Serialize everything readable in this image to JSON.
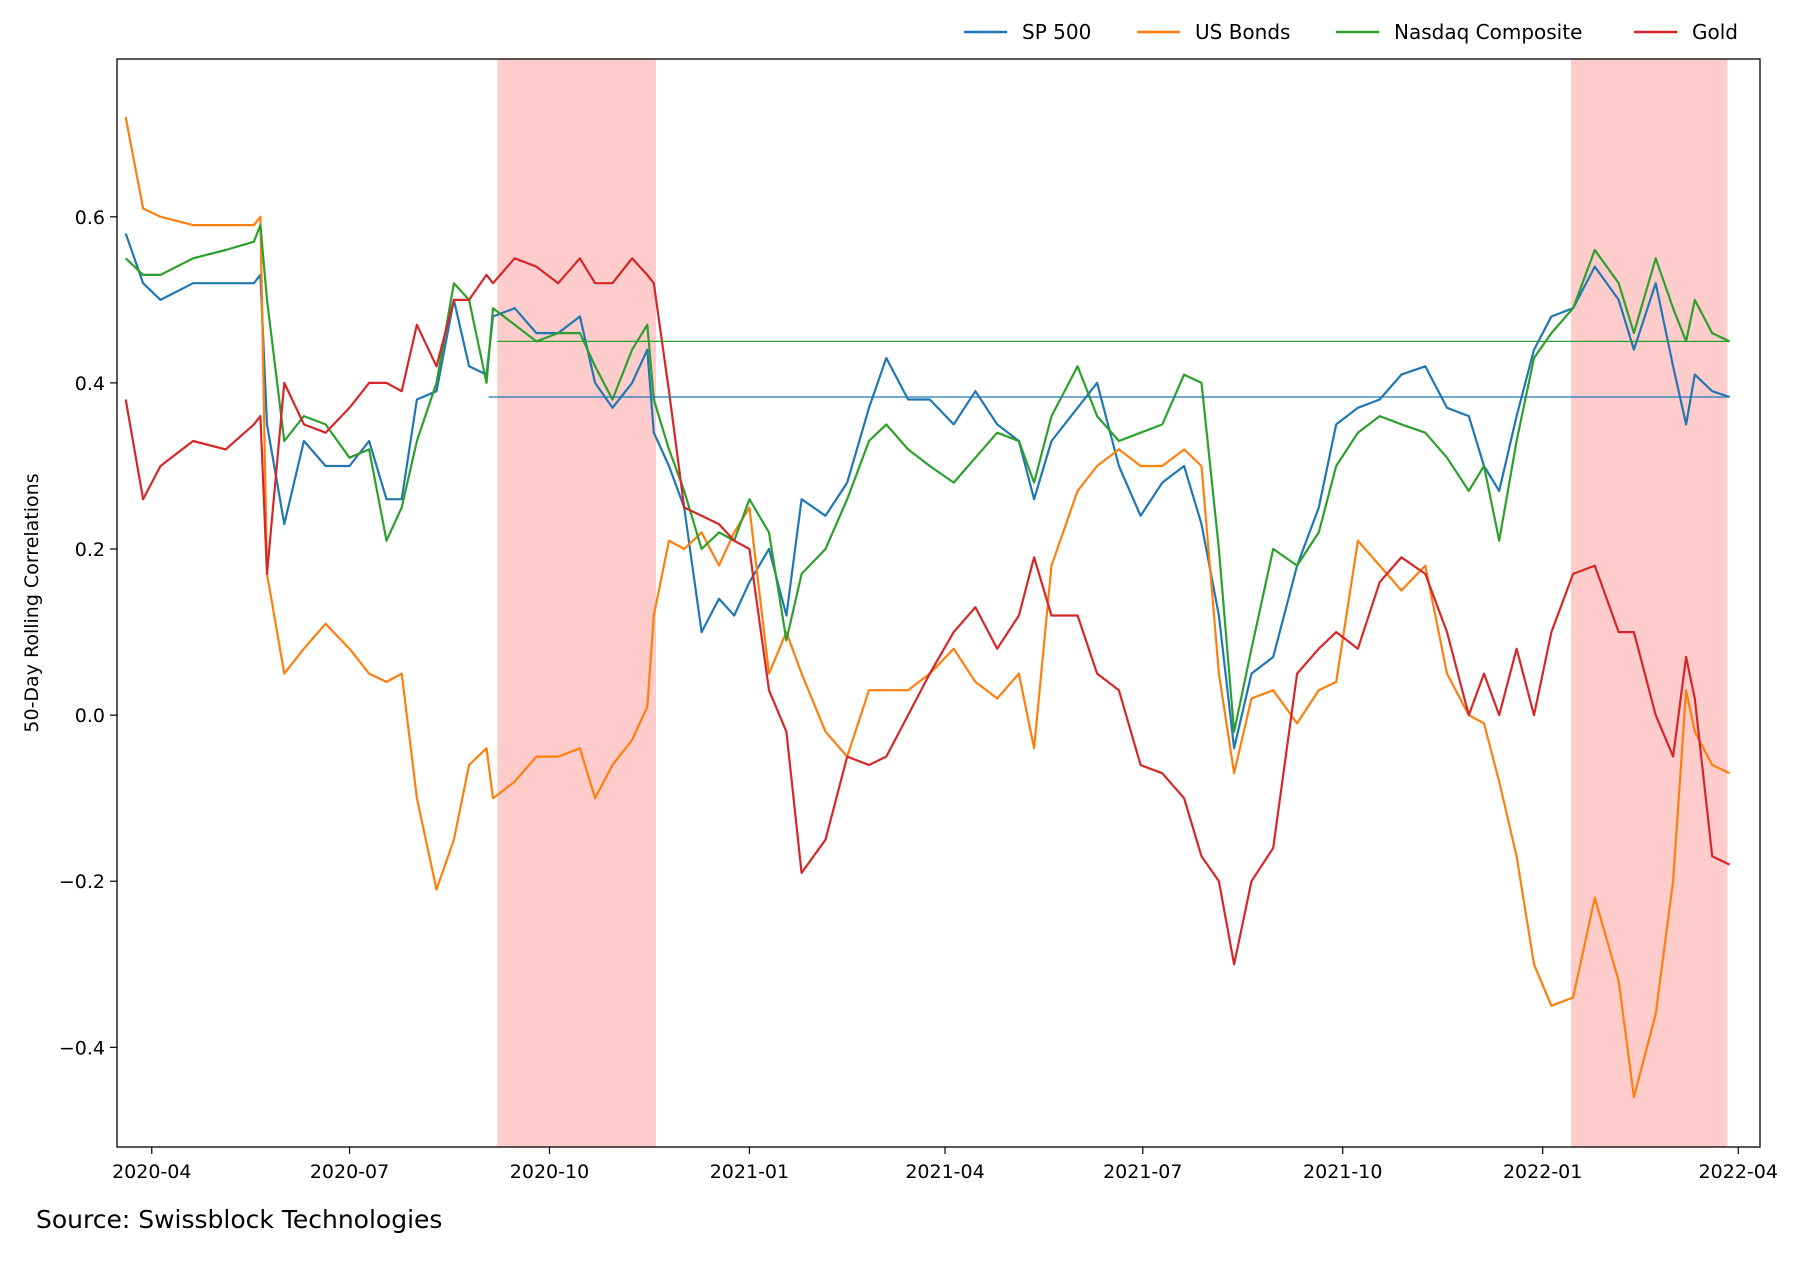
{
  "chart_data": {
    "type": "line",
    "title": "",
    "xlabel": "",
    "ylabel": "50-Day Rolling Correlations",
    "xlim": [
      "2020-03-16",
      "2022-04-11"
    ],
    "ylim": [
      -0.52,
      0.79
    ],
    "x_ticks": [
      "2020-04",
      "2020-07",
      "2020-10",
      "2021-01",
      "2021-04",
      "2021-07",
      "2021-10",
      "2022-01",
      "2022-04"
    ],
    "y_ticks": [
      -0.4,
      -0.2,
      0.0,
      0.2,
      0.4,
      0.6
    ],
    "y_tick_labels": [
      "−0.4",
      "−0.2",
      "0.0",
      "0.2",
      "0.4",
      "0.6"
    ],
    "grid": false,
    "legend_position": "top-right (outside, above plot)",
    "shaded_regions": [
      {
        "start": "2020-09-07",
        "end": "2020-11-19",
        "color": "#ffcccc"
      },
      {
        "start": "2022-01-14",
        "end": "2022-03-27",
        "color": "#ffcccc"
      }
    ],
    "reference_lines": [
      {
        "series": "Nasdaq Composite",
        "value": 0.45,
        "start": "2020-09-07",
        "end": "2022-03-28"
      },
      {
        "series": "SP 500",
        "value": 0.383,
        "start": "2020-09-03",
        "end": "2022-03-28"
      }
    ],
    "x": [
      "2020-03-20",
      "2020-03-28",
      "2020-04-05",
      "2020-04-20",
      "2020-05-05",
      "2020-05-18",
      "2020-05-21",
      "2020-05-24",
      "2020-06-01",
      "2020-06-10",
      "2020-06-20",
      "2020-07-01",
      "2020-07-10",
      "2020-07-18",
      "2020-07-25",
      "2020-08-01",
      "2020-08-10",
      "2020-08-18",
      "2020-08-25",
      "2020-09-02",
      "2020-09-05",
      "2020-09-15",
      "2020-09-25",
      "2020-10-05",
      "2020-10-15",
      "2020-10-22",
      "2020-10-30",
      "2020-11-08",
      "2020-11-15",
      "2020-11-18",
      "2020-11-25",
      "2020-12-02",
      "2020-12-10",
      "2020-12-18",
      "2020-12-25",
      "2021-01-01",
      "2021-01-10",
      "2021-01-18",
      "2021-01-25",
      "2021-02-05",
      "2021-02-15",
      "2021-02-25",
      "2021-03-05",
      "2021-03-15",
      "2021-03-25",
      "2021-04-05",
      "2021-04-15",
      "2021-04-25",
      "2021-05-05",
      "2021-05-12",
      "2021-05-20",
      "2021-06-01",
      "2021-06-10",
      "2021-06-20",
      "2021-06-30",
      "2021-07-10",
      "2021-07-20",
      "2021-07-28",
      "2021-08-05",
      "2021-08-12",
      "2021-08-20",
      "2021-08-30",
      "2021-09-10",
      "2021-09-20",
      "2021-09-28",
      "2021-10-08",
      "2021-10-18",
      "2021-10-28",
      "2021-11-08",
      "2021-11-18",
      "2021-11-28",
      "2021-12-05",
      "2021-12-12",
      "2021-12-20",
      "2021-12-28",
      "2022-01-05",
      "2022-01-15",
      "2022-01-25",
      "2022-02-05",
      "2022-02-12",
      "2022-02-22",
      "2022-03-02",
      "2022-03-08",
      "2022-03-12",
      "2022-03-20",
      "2022-03-28"
    ],
    "series": [
      {
        "name": "SP 500",
        "color": "#1f77b4",
        "values": [
          0.58,
          0.52,
          0.5,
          0.52,
          0.52,
          0.52,
          0.53,
          0.35,
          0.23,
          0.33,
          0.3,
          0.3,
          0.33,
          0.26,
          0.26,
          0.38,
          0.39,
          0.5,
          0.42,
          0.41,
          0.48,
          0.49,
          0.46,
          0.46,
          0.48,
          0.4,
          0.37,
          0.4,
          0.44,
          0.34,
          0.3,
          0.25,
          0.1,
          0.14,
          0.12,
          0.16,
          0.2,
          0.12,
          0.26,
          0.24,
          0.28,
          0.37,
          0.43,
          0.38,
          0.38,
          0.35,
          0.39,
          0.35,
          0.33,
          0.26,
          0.33,
          0.37,
          0.4,
          0.3,
          0.24,
          0.28,
          0.3,
          0.23,
          0.12,
          -0.04,
          0.05,
          0.07,
          0.18,
          0.25,
          0.35,
          0.37,
          0.38,
          0.41,
          0.42,
          0.37,
          0.36,
          0.3,
          0.27,
          0.36,
          0.44,
          0.48,
          0.49,
          0.54,
          0.5,
          0.44,
          0.52,
          0.42,
          0.35,
          0.41,
          0.39,
          0.383
        ]
      },
      {
        "name": "US Bonds",
        "color": "#ff7f0e",
        "values": [
          0.72,
          0.61,
          0.6,
          0.59,
          0.59,
          0.59,
          0.6,
          0.17,
          0.05,
          0.08,
          0.11,
          0.08,
          0.05,
          0.04,
          0.05,
          -0.1,
          -0.21,
          -0.15,
          -0.06,
          -0.04,
          -0.1,
          -0.08,
          -0.05,
          -0.05,
          -0.04,
          -0.1,
          -0.06,
          -0.03,
          0.01,
          0.12,
          0.21,
          0.2,
          0.22,
          0.18,
          0.22,
          0.25,
          0.05,
          0.1,
          0.05,
          -0.02,
          -0.05,
          0.03,
          0.03,
          0.03,
          0.05,
          0.08,
          0.04,
          0.02,
          0.05,
          -0.04,
          0.18,
          0.27,
          0.3,
          0.32,
          0.3,
          0.3,
          0.32,
          0.3,
          0.05,
          -0.07,
          0.02,
          0.03,
          -0.01,
          0.03,
          0.04,
          0.21,
          0.18,
          0.15,
          0.18,
          0.05,
          0.0,
          -0.01,
          -0.08,
          -0.17,
          -0.3,
          -0.35,
          -0.34,
          -0.22,
          -0.32,
          -0.46,
          -0.36,
          -0.2,
          0.03,
          -0.02,
          -0.06,
          -0.07
        ]
      },
      {
        "name": "Nasdaq Composite",
        "color": "#2ca02c",
        "values": [
          0.55,
          0.53,
          0.53,
          0.55,
          0.56,
          0.57,
          0.59,
          0.5,
          0.33,
          0.36,
          0.35,
          0.31,
          0.32,
          0.21,
          0.25,
          0.33,
          0.4,
          0.52,
          0.5,
          0.4,
          0.49,
          0.47,
          0.45,
          0.46,
          0.46,
          0.42,
          0.38,
          0.44,
          0.47,
          0.38,
          0.32,
          0.27,
          0.2,
          0.22,
          0.21,
          0.26,
          0.22,
          0.09,
          0.17,
          0.2,
          0.26,
          0.33,
          0.35,
          0.32,
          0.3,
          0.28,
          0.31,
          0.34,
          0.33,
          0.28,
          0.36,
          0.42,
          0.36,
          0.33,
          0.34,
          0.35,
          0.41,
          0.4,
          0.2,
          -0.02,
          0.08,
          0.2,
          0.18,
          0.22,
          0.3,
          0.34,
          0.36,
          0.35,
          0.34,
          0.31,
          0.27,
          0.3,
          0.21,
          0.33,
          0.43,
          0.46,
          0.49,
          0.56,
          0.52,
          0.46,
          0.55,
          0.49,
          0.45,
          0.5,
          0.46,
          0.45
        ]
      },
      {
        "name": "Gold",
        "color": "#d62728",
        "values": [
          0.38,
          0.26,
          0.3,
          0.33,
          0.32,
          0.35,
          0.36,
          0.17,
          0.4,
          0.35,
          0.34,
          0.37,
          0.4,
          0.4,
          0.39,
          0.47,
          0.42,
          0.5,
          0.5,
          0.53,
          0.52,
          0.55,
          0.54,
          0.52,
          0.55,
          0.52,
          0.52,
          0.55,
          0.53,
          0.52,
          0.39,
          0.25,
          0.24,
          0.23,
          0.21,
          0.2,
          0.03,
          -0.02,
          -0.19,
          -0.15,
          -0.05,
          -0.06,
          -0.05,
          0.0,
          0.05,
          0.1,
          0.13,
          0.08,
          0.12,
          0.19,
          0.12,
          0.12,
          0.05,
          0.03,
          -0.06,
          -0.07,
          -0.1,
          -0.17,
          -0.2,
          -0.3,
          -0.2,
          -0.16,
          0.05,
          0.08,
          0.1,
          0.08,
          0.16,
          0.19,
          0.17,
          0.1,
          0.0,
          0.05,
          0.0,
          0.08,
          0.0,
          0.1,
          0.17,
          0.18,
          0.1,
          0.1,
          0.0,
          -0.05,
          0.07,
          0.02,
          -0.17,
          -0.18
        ]
      }
    ]
  },
  "source": "Source: Swissblock Technologies"
}
